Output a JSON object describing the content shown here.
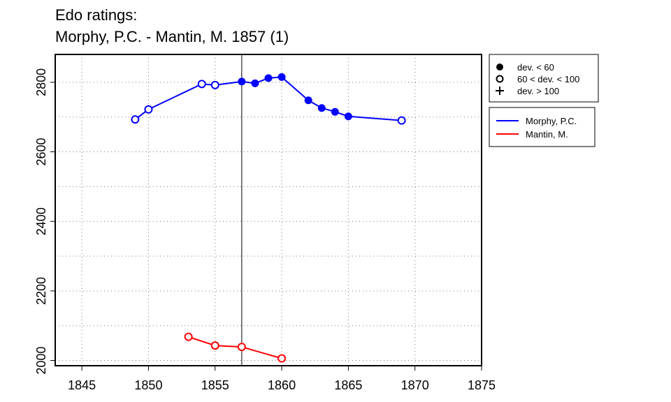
{
  "chart_data": {
    "type": "line",
    "title": "Edo ratings:",
    "subtitle": "Morphy, P.C. - Mantin, M. 1857 (1)",
    "xlabel": "",
    "ylabel": "",
    "xlim": [
      1843,
      1875
    ],
    "ylim": [
      1985,
      2880
    ],
    "xticks": [
      1845,
      1850,
      1855,
      1860,
      1865,
      1870,
      1875
    ],
    "yticks": [
      2000,
      2200,
      2400,
      2600,
      2800
    ],
    "grid": "dotted",
    "event_year": 1857,
    "series": [
      {
        "name": "Morphy, P.C.",
        "color": "#0000ff",
        "points": [
          {
            "x": 1849,
            "y": 2693,
            "marker": "open"
          },
          {
            "x": 1850,
            "y": 2722,
            "marker": "open"
          },
          {
            "x": 1854,
            "y": 2795,
            "marker": "open"
          },
          {
            "x": 1855,
            "y": 2792,
            "marker": "open"
          },
          {
            "x": 1857,
            "y": 2802,
            "marker": "filled"
          },
          {
            "x": 1858,
            "y": 2797,
            "marker": "filled"
          },
          {
            "x": 1859,
            "y": 2812,
            "marker": "filled"
          },
          {
            "x": 1860,
            "y": 2815,
            "marker": "filled"
          },
          {
            "x": 1862,
            "y": 2748,
            "marker": "filled"
          },
          {
            "x": 1863,
            "y": 2726,
            "marker": "filled"
          },
          {
            "x": 1864,
            "y": 2715,
            "marker": "filled"
          },
          {
            "x": 1865,
            "y": 2702,
            "marker": "filled"
          },
          {
            "x": 1869,
            "y": 2690,
            "marker": "open"
          }
        ]
      },
      {
        "name": "Mantin, M.",
        "color": "#ff0000",
        "points": [
          {
            "x": 1853,
            "y": 2068,
            "marker": "open"
          },
          {
            "x": 1855,
            "y": 2043,
            "marker": "open"
          },
          {
            "x": 1857,
            "y": 2039,
            "marker": "open"
          },
          {
            "x": 1860,
            "y": 2006,
            "marker": "open"
          }
        ]
      }
    ],
    "marker_legend": [
      {
        "symbol": "filled",
        "label": "dev. < 60"
      },
      {
        "symbol": "open",
        "label": "60 < dev. < 100"
      },
      {
        "symbol": "plus",
        "label": "dev. > 100"
      }
    ]
  }
}
